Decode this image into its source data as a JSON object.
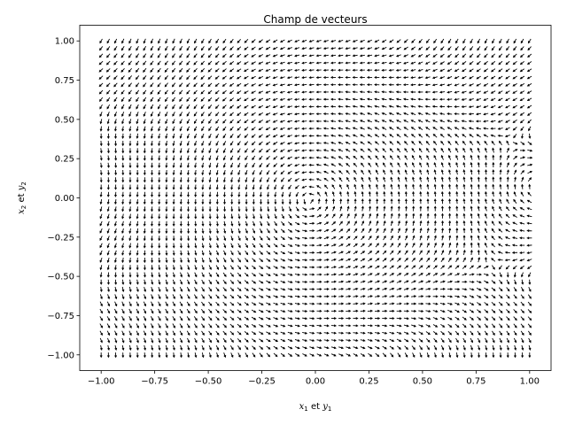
{
  "chart_data": {
    "type": "quiver",
    "title": "Champ de vecteurs",
    "xlabel": {
      "var": "x",
      "var_sub": "1",
      "conj": "et",
      "var2": "y",
      "var2_sub": "1"
    },
    "ylabel": {
      "var": "x",
      "var_sub": "2",
      "conj": "et",
      "var2": "y",
      "var2_sub": "2"
    },
    "xlim": [
      -1.1,
      1.1
    ],
    "ylim": [
      -1.1,
      1.1
    ],
    "xticks": [
      "−1.00",
      "−0.75",
      "−0.50",
      "−0.25",
      "0.00",
      "0.25",
      "0.50",
      "0.75",
      "1.00"
    ],
    "yticks": [
      "−1.00",
      "−0.75",
      "−0.50",
      "−0.25",
      "0.00",
      "0.25",
      "0.50",
      "0.75",
      "1.00"
    ],
    "grid": {
      "x_range": [
        -1.0,
        1.0
      ],
      "y_range": [
        -1.0,
        1.0
      ],
      "nx": 60,
      "ny": 44
    },
    "arrow_color": "#000000",
    "grid_on": false
  }
}
